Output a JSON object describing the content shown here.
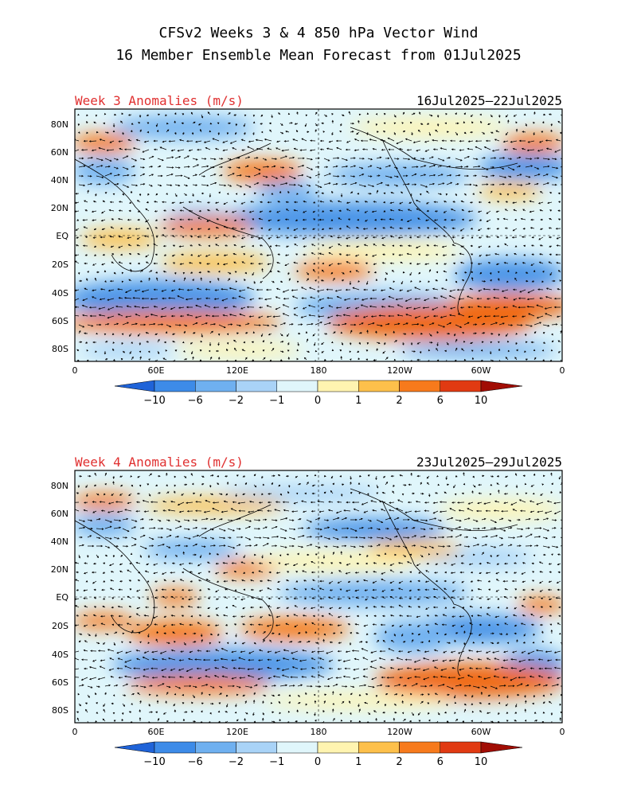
{
  "title": {
    "line1": "CFSv2 Weeks 3 & 4 850 hPa Vector Wind",
    "line2": "16 Member Ensemble Mean Forecast from 01Jul2025"
  },
  "panels": [
    {
      "label": "Week 3 Anomalies (m/s)",
      "date_range": "16Jul2025–22Jul2025",
      "lat_labels": [
        "80N",
        "60N",
        "40N",
        "20N",
        "EQ",
        "20S",
        "40S",
        "60S",
        "80S"
      ],
      "lon_labels": [
        "0",
        "60E",
        "120E",
        "180",
        "120W",
        "60W",
        "0"
      ]
    },
    {
      "label": "Week 4 Anomalies (m/s)",
      "date_range": "23Jul2025–29Jul2025",
      "lat_labels": [
        "80N",
        "60N",
        "40N",
        "20N",
        "EQ",
        "20S",
        "40S",
        "60S",
        "80S"
      ],
      "lon_labels": [
        "0",
        "60E",
        "120E",
        "180",
        "120W",
        "60W",
        "0"
      ]
    }
  ],
  "colorbar": {
    "labels": [
      "−10",
      "−6",
      "−2",
      "−1",
      "0",
      "1",
      "2",
      "6",
      "10"
    ],
    "colors": [
      "#1f63d8",
      "#3d8be8",
      "#6fb0f0",
      "#a9d3f7",
      "#e0f6fb",
      "#fff4b0",
      "#fdc04b",
      "#f77a1c",
      "#e13a12",
      "#a10d04"
    ]
  },
  "colors": {
    "panel_label": "#e03030",
    "text": "#000000"
  }
}
